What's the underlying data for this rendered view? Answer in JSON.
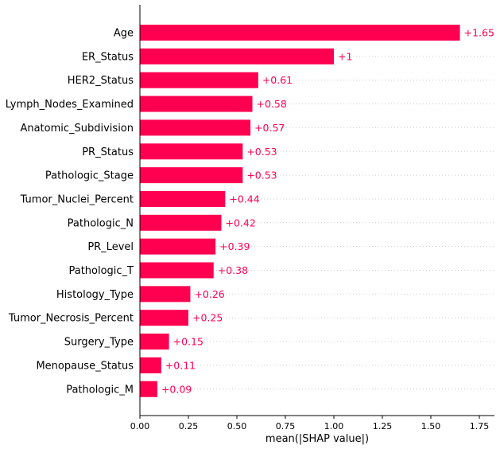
{
  "chart_data": {
    "type": "bar",
    "orientation": "horizontal",
    "categories": [
      "Age",
      "ER_Status",
      "HER2_Status",
      "Lymph_Nodes_Examined",
      "Anatomic_Subdivision",
      "PR_Status",
      "Pathologic_Stage",
      "Tumor_Nuclei_Percent",
      "Pathologic_N",
      "PR_Level",
      "Pathologic_T",
      "Histology_Type",
      "Tumor_Necrosis_Percent",
      "Surgery_Type",
      "Menopause_Status",
      "Pathologic_M"
    ],
    "values": [
      1.65,
      1,
      0.61,
      0.58,
      0.57,
      0.53,
      0.53,
      0.44,
      0.42,
      0.39,
      0.38,
      0.26,
      0.25,
      0.15,
      0.11,
      0.09
    ],
    "value_labels": [
      "+1.65",
      "+1",
      "+0.61",
      "+0.58",
      "+0.57",
      "+0.53",
      "+0.53",
      "+0.44",
      "+0.42",
      "+0.39",
      "+0.38",
      "+0.26",
      "+0.25",
      "+0.15",
      "+0.11",
      "+0.09"
    ],
    "xlabel": "mean(|SHAP value|)",
    "ylabel": "",
    "xlim": [
      0,
      1.82
    ],
    "xticks": [
      0,
      0.25,
      0.5,
      0.75,
      1,
      1.25,
      1.5,
      1.75
    ],
    "xtick_labels": [
      "0.00",
      "0.25",
      "0.50",
      "0.75",
      "1.00",
      "1.25",
      "1.50",
      "1.75"
    ],
    "grid": "horizontal-dotted",
    "bar_color": "#ff0051",
    "grid_color": "#cccccc"
  }
}
